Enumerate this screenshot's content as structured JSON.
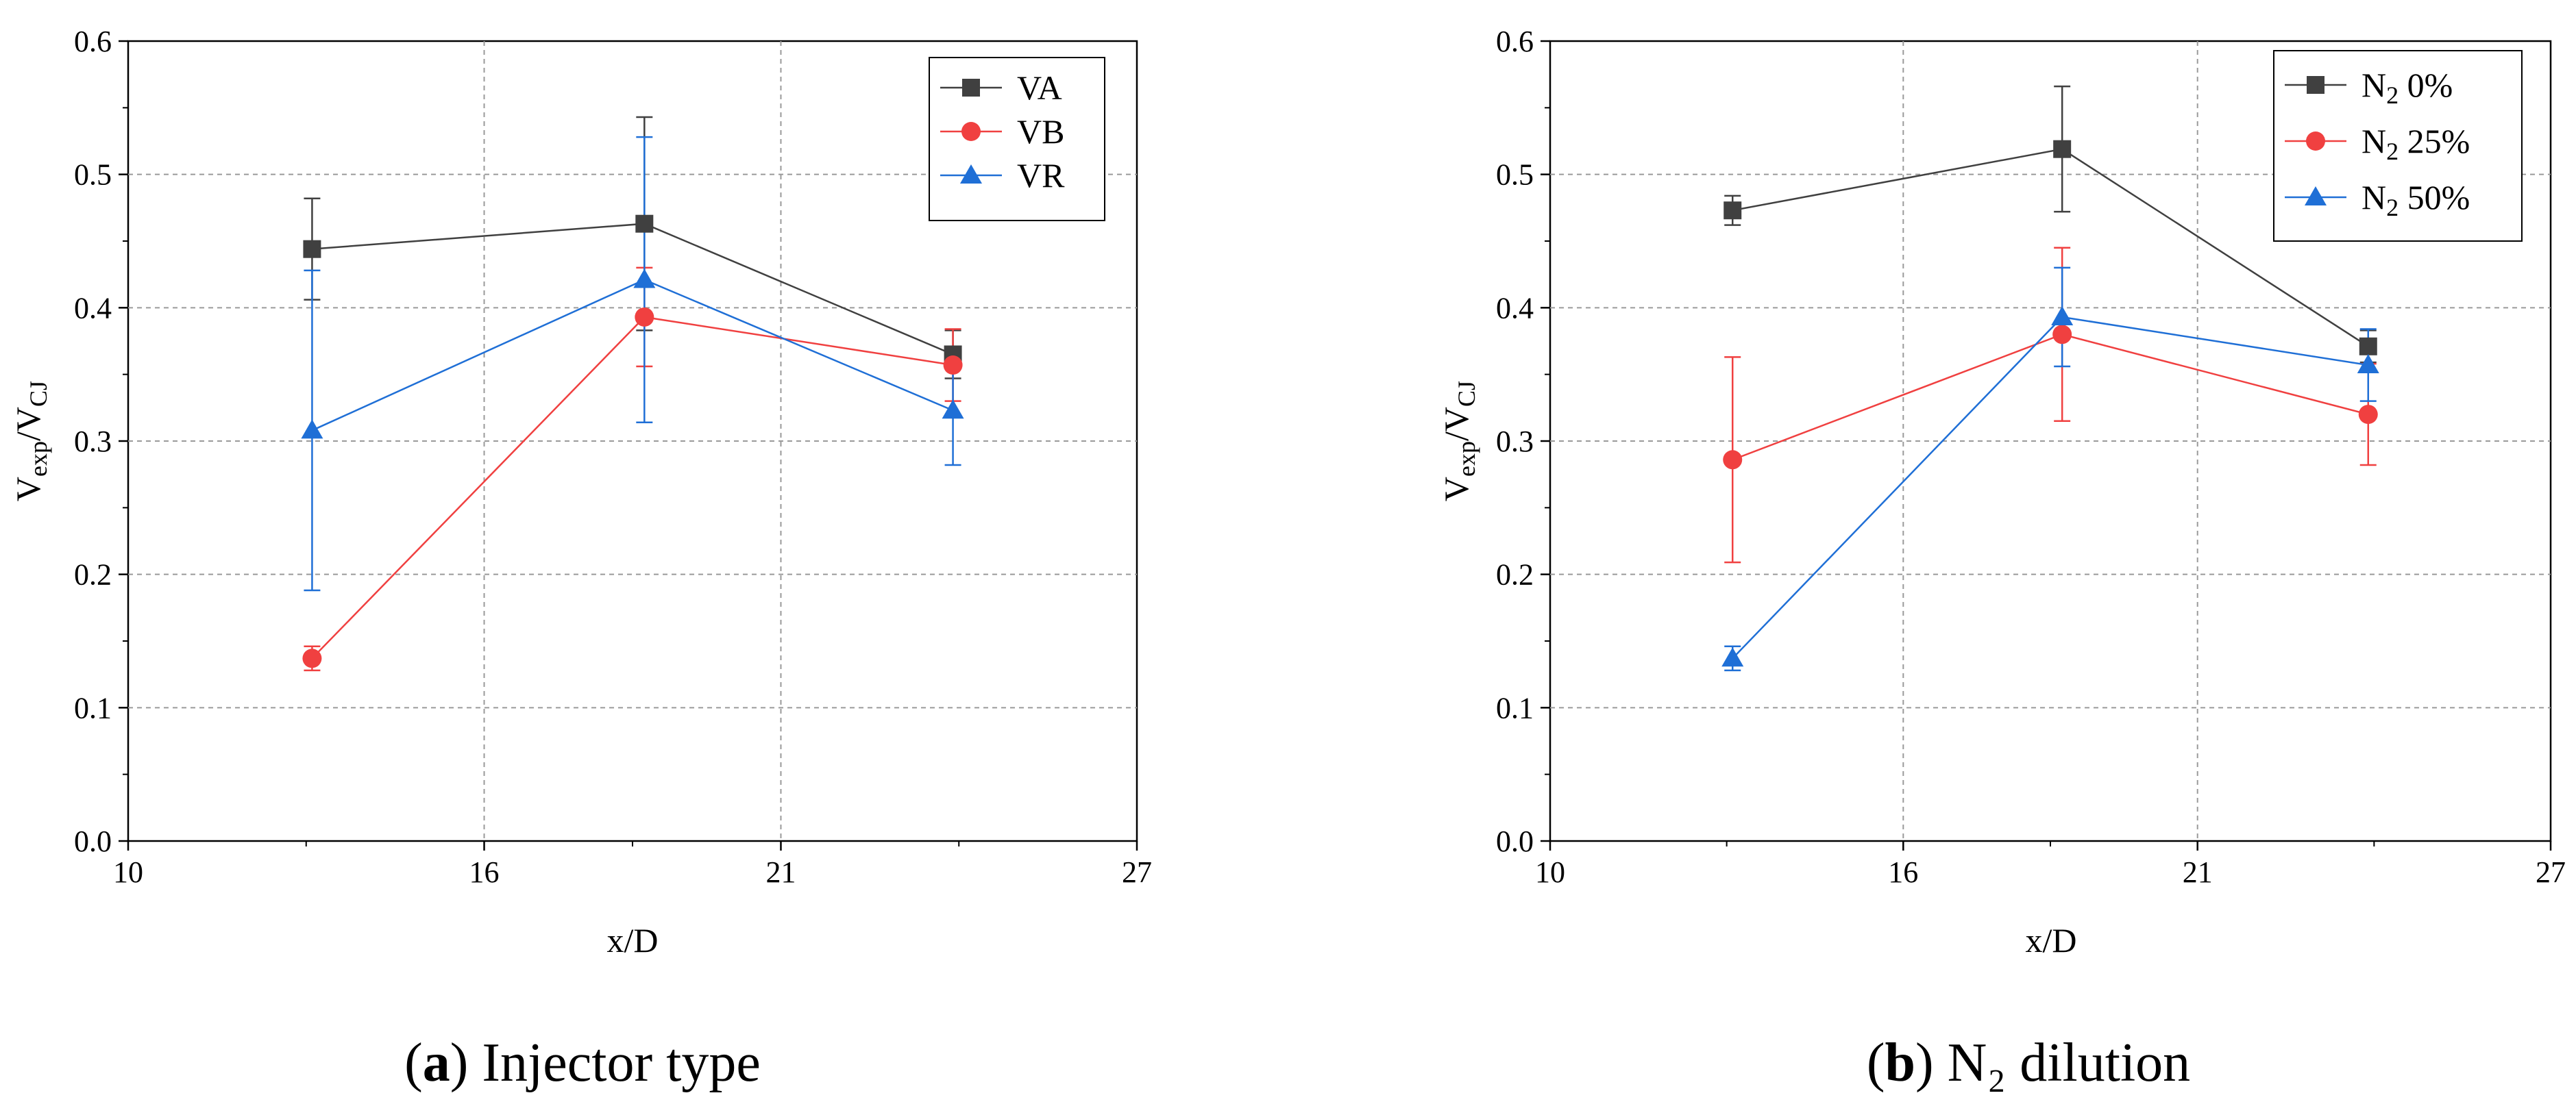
{
  "chart_data": [
    {
      "type": "line",
      "caption": {
        "letter": "a",
        "text": "Injector type"
      },
      "xlabel": "x/D",
      "ylabel": {
        "main": "V",
        "sub1": "exp",
        "sep": "/V",
        "sub2": "CJ"
      },
      "xlim": [
        10,
        27
      ],
      "ylim": [
        0,
        0.6
      ],
      "xticks": [
        10,
        16,
        21,
        27
      ],
      "yticks": [
        0.0,
        0.1,
        0.2,
        0.3,
        0.4,
        0.5,
        0.6
      ],
      "grid": true,
      "legend_position": "top-right",
      "series": [
        {
          "name": "VA",
          "name_sub": "",
          "name_rest": "",
          "marker": "square",
          "color": "#404040",
          "x": [
            13.1,
            18.7,
            23.9
          ],
          "y": [
            0.444,
            0.463,
            0.365
          ],
          "error": [
            0.038,
            0.08,
            0.018
          ]
        },
        {
          "name": "VB",
          "name_sub": "",
          "name_rest": "",
          "marker": "circle",
          "color": "#f04040",
          "x": [
            13.1,
            18.7,
            23.9
          ],
          "y": [
            0.137,
            0.393,
            0.357
          ],
          "error": [
            0.009,
            0.037,
            0.027
          ]
        },
        {
          "name": "VR",
          "name_sub": "",
          "name_rest": "",
          "marker": "triangle",
          "color": "#1f6fd6",
          "x": [
            13.1,
            18.7,
            23.9
          ],
          "y": [
            0.308,
            0.421,
            0.323
          ],
          "error": [
            0.12,
            0.107,
            0.041
          ]
        }
      ]
    },
    {
      "type": "line",
      "caption": {
        "letter": "b",
        "text": "N₂ dilution"
      },
      "xlabel": "x/D",
      "ylabel": {
        "main": "V",
        "sub1": "exp",
        "sep": "/V",
        "sub2": "CJ"
      },
      "xlim": [
        10,
        27
      ],
      "ylim": [
        0,
        0.6
      ],
      "xticks": [
        10,
        16,
        21,
        27
      ],
      "yticks": [
        0.0,
        0.1,
        0.2,
        0.3,
        0.4,
        0.5,
        0.6
      ],
      "grid": true,
      "legend_position": "top-right",
      "series": [
        {
          "name": "N",
          "name_sub": "2",
          "name_rest": " 0%",
          "marker": "square",
          "color": "#404040",
          "x": [
            13.1,
            18.7,
            23.9
          ],
          "y": [
            0.473,
            0.519,
            0.371
          ],
          "error": [
            0.011,
            0.047,
            0.012
          ]
        },
        {
          "name": "N",
          "name_sub": "2",
          "name_rest": " 25%",
          "marker": "circle",
          "color": "#f04040",
          "x": [
            13.1,
            18.7,
            23.9
          ],
          "y": [
            0.286,
            0.38,
            0.32
          ],
          "error": [
            0.077,
            0.065,
            0.038
          ]
        },
        {
          "name": "N",
          "name_sub": "2",
          "name_rest": " 50%",
          "marker": "triangle",
          "color": "#1f6fd6",
          "x": [
            13.1,
            18.7,
            23.9
          ],
          "y": [
            0.137,
            0.393,
            0.357
          ],
          "error": [
            0.009,
            0.037,
            0.027
          ]
        }
      ]
    }
  ]
}
